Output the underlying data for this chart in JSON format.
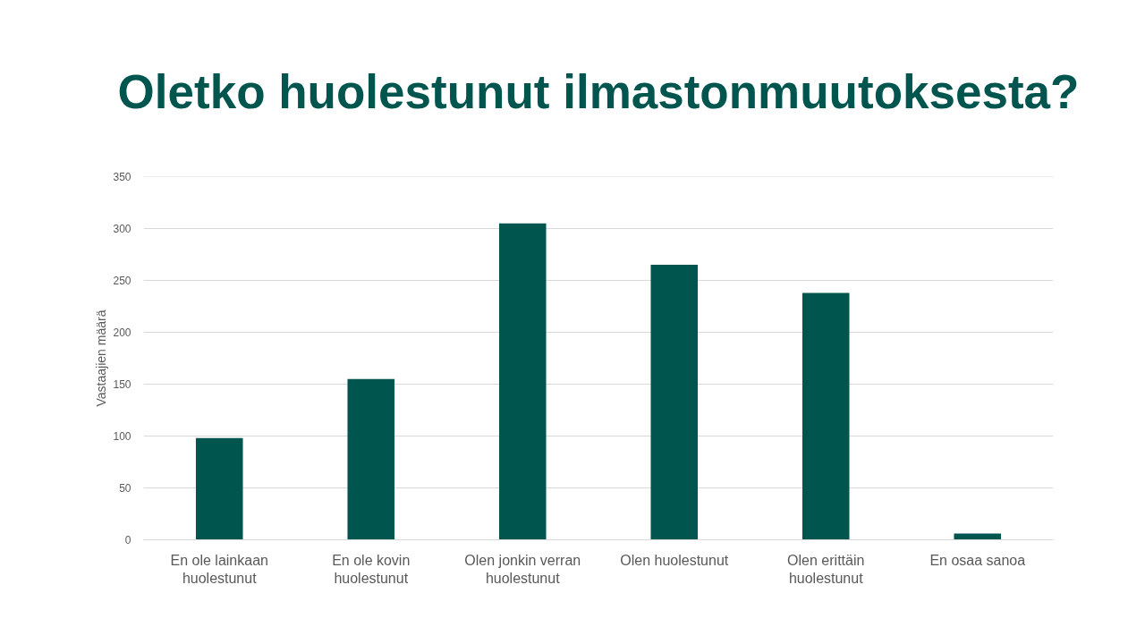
{
  "chart_data": {
    "type": "bar",
    "title": "Oletko huolestunut ilmastonmuutoksesta?",
    "ylabel": "Vastaajien määrä",
    "categories": [
      "En ole lainkaan huolestunut",
      "En ole kovin huolestunut",
      "Olen jonkin verran huolestunut",
      "Olen huolestunut",
      "Olen erittäin huolestunut",
      "En osaa sanoa"
    ],
    "values": [
      98,
      155,
      305,
      265,
      238,
      6
    ],
    "color": "#00564f",
    "ylim": [
      0,
      350
    ],
    "yticks": [
      0,
      50,
      100,
      150,
      200,
      250,
      300,
      350
    ],
    "grid": "y"
  }
}
